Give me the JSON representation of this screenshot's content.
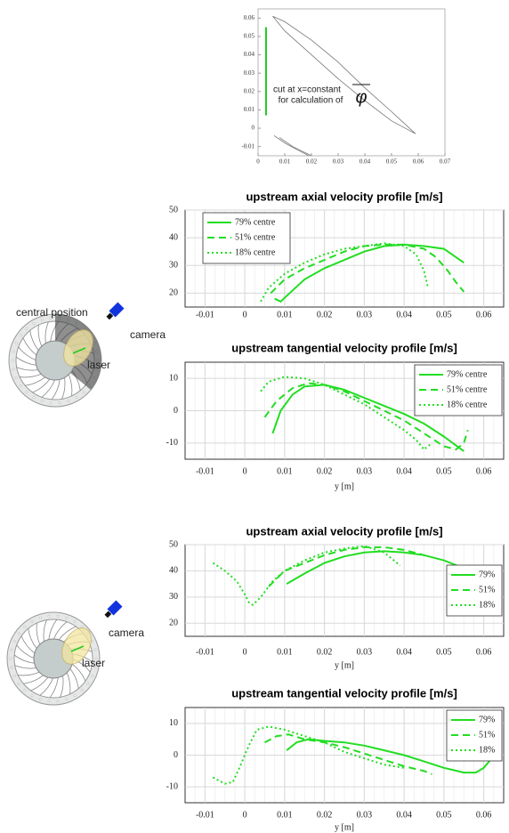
{
  "chart_data": [
    {
      "type": "line",
      "annotation": [
        "cut at x=constant",
        "for calculation of"
      ],
      "annotation_symbol": "φ",
      "xlim": [
        0,
        0.07
      ],
      "xticks": [
        0,
        0.01,
        0.02,
        0.03,
        0.04,
        0.05,
        0.06,
        0.07
      ],
      "ylim": [
        -0.015,
        0.065
      ],
      "yticks": [
        -0.01,
        0,
        0.01,
        0.02,
        0.03,
        0.04,
        0.05,
        0.06
      ],
      "grid": false,
      "series": [
        {
          "color": "#22cc22",
          "style": "solid",
          "x": [
            0.003,
            0.003
          ],
          "values": [
            0.007,
            0.055
          ]
        },
        {
          "color": "#777777",
          "style": "solid",
          "x": [
            0.0055,
            0.01,
            0.02,
            0.03,
            0.04,
            0.05,
            0.059,
            0.05,
            0.04,
            0.03,
            0.02,
            0.01,
            0.0055
          ],
          "values": [
            0.061,
            0.058,
            0.048,
            0.036,
            0.022,
            0.009,
            -0.003,
            0.004,
            0.015,
            0.027,
            0.04,
            0.053,
            0.061
          ]
        },
        {
          "color": "#777777",
          "style": "solid",
          "x": [
            0.006,
            0.01,
            0.015,
            0.019
          ],
          "values": [
            -0.004,
            -0.008,
            -0.012,
            -0.015
          ]
        },
        {
          "color": "#777777",
          "style": "solid",
          "x": [
            0.008,
            0.013,
            0.02
          ],
          "values": [
            -0.005,
            -0.01,
            -0.015
          ]
        }
      ]
    },
    {
      "type": "line",
      "title": "upstream axial velocity profile [m/s]",
      "legend": "upper left",
      "xlim": [
        -0.015,
        0.065
      ],
      "xticks": [
        -0.01,
        0,
        0.01,
        0.02,
        0.03,
        0.04,
        0.05,
        0.06
      ],
      "ylim": [
        15,
        50
      ],
      "yticks": [
        20,
        30,
        40,
        50
      ],
      "grid": true,
      "series": [
        {
          "name": "79% centre",
          "color": "#22dd22",
          "style": "solid",
          "x": [
            0.0075,
            0.009,
            0.012,
            0.015,
            0.02,
            0.025,
            0.03,
            0.035,
            0.04,
            0.045,
            0.05,
            0.053,
            0.055
          ],
          "values": [
            18,
            17,
            21,
            25,
            29,
            32,
            35,
            37,
            37.5,
            37,
            36,
            33,
            31
          ]
        },
        {
          "name": "51% centre",
          "color": "#22dd22",
          "style": "dashed",
          "x": [
            0.0065,
            0.01,
            0.015,
            0.02,
            0.025,
            0.03,
            0.035,
            0.04,
            0.045,
            0.048,
            0.051,
            0.053,
            0.055
          ],
          "values": [
            20,
            25,
            29,
            32,
            35,
            37,
            37.5,
            37.5,
            36,
            33,
            28,
            24,
            20.5
          ]
        },
        {
          "name": "18% centre",
          "color": "#22dd22",
          "style": "dotted",
          "x": [
            0.004,
            0.006,
            0.01,
            0.015,
            0.02,
            0.025,
            0.03,
            0.035,
            0.04,
            0.043,
            0.045,
            0.046
          ],
          "values": [
            17,
            22,
            27,
            31,
            34,
            36,
            37,
            38,
            37,
            34,
            28,
            22
          ]
        }
      ]
    },
    {
      "type": "line",
      "title": "upstream tangential velocity profile [m/s]",
      "x_label": "y [m]",
      "legend": "upper right",
      "xlim": [
        -0.015,
        0.065
      ],
      "xticks": [
        -0.01,
        0,
        0.01,
        0.02,
        0.03,
        0.04,
        0.05,
        0.06
      ],
      "ylim": [
        -15,
        15
      ],
      "yticks": [
        -10,
        0,
        10
      ],
      "grid": true,
      "series": [
        {
          "name": "79% centre",
          "color": "#22dd22",
          "style": "solid",
          "x": [
            0.007,
            0.009,
            0.012,
            0.015,
            0.02,
            0.025,
            0.03,
            0.035,
            0.04,
            0.045,
            0.05,
            0.055
          ],
          "values": [
            -7,
            0,
            5,
            7.5,
            8,
            6.5,
            4,
            1.5,
            -1,
            -4,
            -8,
            -12.5
          ]
        },
        {
          "name": "51% centre",
          "color": "#22dd22",
          "style": "dashed",
          "x": [
            0.005,
            0.008,
            0.012,
            0.016,
            0.02,
            0.025,
            0.03,
            0.035,
            0.04,
            0.045,
            0.05,
            0.053,
            0.055,
            0.056
          ],
          "values": [
            -2,
            3,
            7,
            8.5,
            8,
            6,
            3,
            0,
            -3,
            -7,
            -11,
            -12,
            -10,
            -6
          ]
        },
        {
          "name": "18% centre",
          "color": "#22dd22",
          "style": "dotted",
          "x": [
            0.004,
            0.006,
            0.01,
            0.015,
            0.02,
            0.025,
            0.03,
            0.035,
            0.04,
            0.043,
            0.045,
            0.047
          ],
          "values": [
            6,
            9,
            10.5,
            10,
            8,
            5,
            2,
            -2,
            -6,
            -9,
            -12,
            -10
          ]
        }
      ]
    },
    {
      "type": "line",
      "title": "upstream axial velocity profile [m/s]",
      "x_label": "y [m]",
      "legend": "center right",
      "xlim": [
        -0.015,
        0.065
      ],
      "xticks": [
        -0.01,
        0,
        0.01,
        0.02,
        0.03,
        0.04,
        0.05,
        0.06
      ],
      "ylim": [
        15,
        50
      ],
      "yticks": [
        20,
        30,
        40,
        50
      ],
      "grid": true,
      "series": [
        {
          "name": "79%",
          "color": "#22dd22",
          "style": "solid",
          "x": [
            0.0105,
            0.015,
            0.02,
            0.025,
            0.03,
            0.035,
            0.04,
            0.045,
            0.05,
            0.055
          ],
          "values": [
            35,
            39,
            43,
            45.5,
            47,
            47.5,
            47,
            46,
            44,
            41
          ]
        },
        {
          "name": "51%",
          "color": "#22dd22",
          "style": "dashed",
          "x": [
            0.006,
            0.01,
            0.015,
            0.02,
            0.025,
            0.03,
            0.035,
            0.04,
            0.045
          ],
          "values": [
            34,
            40,
            43,
            46,
            48,
            49,
            49,
            48,
            46
          ]
        },
        {
          "name": "18%",
          "color": "#22dd22",
          "style": "dotted",
          "x": [
            -0.008,
            -0.005,
            -0.002,
            0,
            0.001,
            0.002,
            0.004,
            0.007,
            0.01,
            0.015,
            0.02,
            0.025,
            0.03,
            0.035,
            0.039
          ],
          "values": [
            43,
            40,
            36,
            31,
            28,
            27,
            30,
            36,
            40,
            44,
            47,
            48.5,
            49.5,
            47,
            42
          ]
        }
      ]
    },
    {
      "type": "line",
      "title": "upstream tangential velocity profile [m/s]",
      "x_label": "y [m]",
      "legend": "upper right",
      "xlim": [
        -0.015,
        0.065
      ],
      "xticks": [
        -0.01,
        0,
        0.01,
        0.02,
        0.03,
        0.04,
        0.05,
        0.06
      ],
      "ylim": [
        -15,
        15
      ],
      "yticks": [
        -10,
        0,
        10
      ],
      "grid": true,
      "series": [
        {
          "name": "79%",
          "color": "#22dd22",
          "style": "solid",
          "x": [
            0.0105,
            0.013,
            0.016,
            0.02,
            0.025,
            0.03,
            0.035,
            0.04,
            0.045,
            0.05,
            0.055,
            0.058,
            0.06,
            0.062
          ],
          "values": [
            1.5,
            4,
            5,
            4.5,
            4,
            3,
            1.5,
            0,
            -2,
            -4,
            -5.5,
            -5.5,
            -4,
            -1
          ]
        },
        {
          "name": "51%",
          "color": "#22dd22",
          "style": "dashed",
          "x": [
            0.005,
            0.008,
            0.011,
            0.015,
            0.02,
            0.025,
            0.03,
            0.035,
            0.04,
            0.045,
            0.047
          ],
          "values": [
            4,
            6,
            6.5,
            5,
            4,
            2.5,
            0.5,
            -1.5,
            -3.5,
            -5,
            -6
          ]
        },
        {
          "name": "18%",
          "color": "#22dd22",
          "style": "dotted",
          "x": [
            -0.008,
            -0.005,
            -0.003,
            -0.001,
            0.001,
            0.003,
            0.006,
            0.01,
            0.015,
            0.02,
            0.025,
            0.03,
            0.035,
            0.04
          ],
          "values": [
            -7,
            -9,
            -8.5,
            -3,
            3,
            8,
            9,
            8,
            6,
            4,
            1,
            -1,
            -3,
            -4
          ]
        }
      ]
    }
  ],
  "diagrams": [
    {
      "title": "central position",
      "camera": "camera",
      "laser": "laser"
    },
    {
      "camera": "camera",
      "laser": "laser"
    }
  ]
}
